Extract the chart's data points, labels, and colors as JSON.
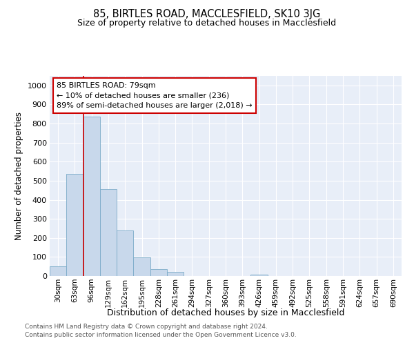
{
  "title_line1": "85, BIRTLES ROAD, MACCLESFIELD, SK10 3JG",
  "title_line2": "Size of property relative to detached houses in Macclesfield",
  "xlabel": "Distribution of detached houses by size in Macclesfield",
  "ylabel": "Number of detached properties",
  "categories": [
    "30sqm",
    "63sqm",
    "96sqm",
    "129sqm",
    "162sqm",
    "195sqm",
    "228sqm",
    "261sqm",
    "294sqm",
    "327sqm",
    "360sqm",
    "393sqm",
    "426sqm",
    "459sqm",
    "492sqm",
    "525sqm",
    "558sqm",
    "591sqm",
    "624sqm",
    "657sqm",
    "690sqm"
  ],
  "values": [
    50,
    535,
    835,
    455,
    240,
    97,
    35,
    22,
    0,
    0,
    0,
    0,
    8,
    0,
    0,
    0,
    0,
    0,
    0,
    0,
    0
  ],
  "bar_color": "#c8d8eb",
  "bar_edge_color": "#7aaac8",
  "vline_x": 1.5,
  "vline_color": "#cc0000",
  "annotation_text": "85 BIRTLES ROAD: 79sqm\n← 10% of detached houses are smaller (236)\n89% of semi-detached houses are larger (2,018) →",
  "annotation_box_color": "white",
  "annotation_box_edge": "#cc0000",
  "ylim": [
    0,
    1050
  ],
  "yticks": [
    0,
    100,
    200,
    300,
    400,
    500,
    600,
    700,
    800,
    900,
    1000
  ],
  "bg_color": "#e8eef8",
  "grid_color": "#ffffff",
  "footer_line1": "Contains HM Land Registry data © Crown copyright and database right 2024.",
  "footer_line2": "Contains public sector information licensed under the Open Government Licence v3.0."
}
